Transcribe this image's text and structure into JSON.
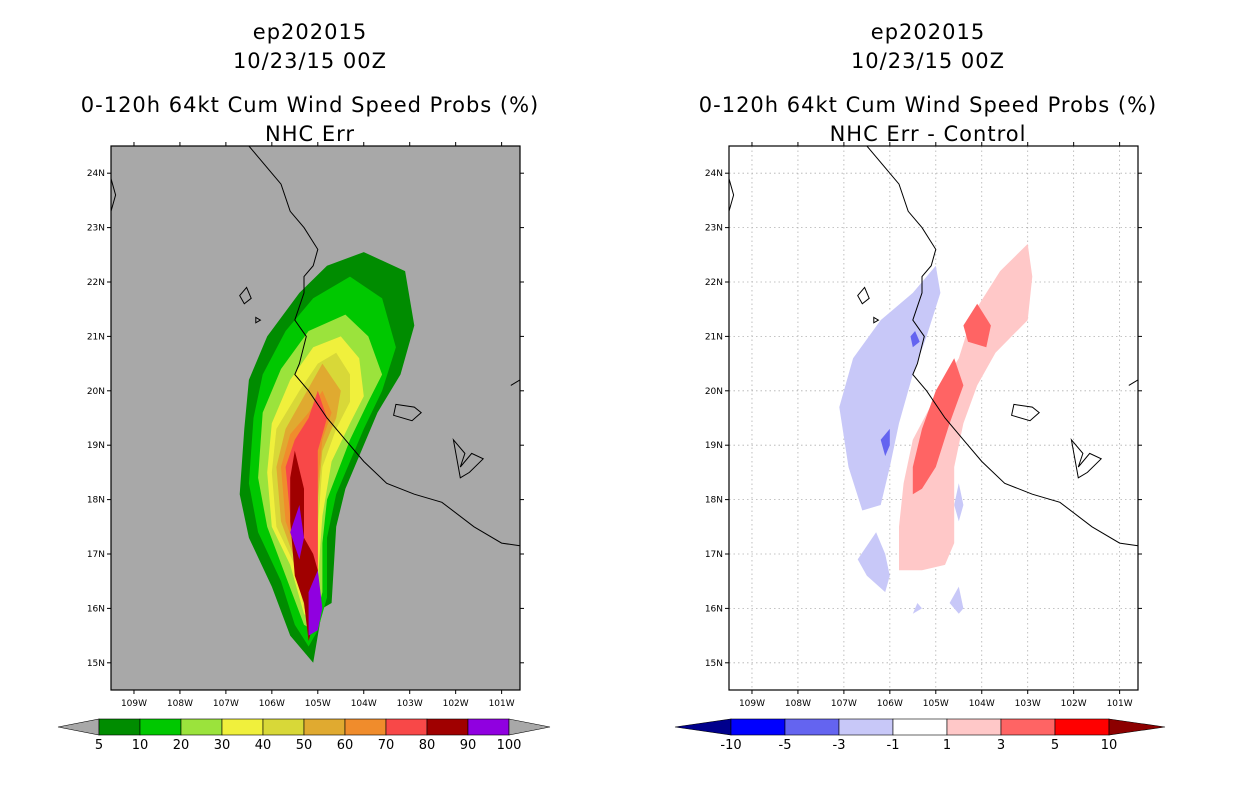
{
  "panels": [
    {
      "id": "left",
      "title_lines": [
        "ep202015",
        "10/23/15 00Z",
        "0-120h 64kt Cum Wind Speed Probs (%)",
        "NHC Err"
      ]
    },
    {
      "id": "right",
      "title_lines": [
        "ep202015",
        "10/23/15 00Z",
        "0-120h 64kt Cum Wind Speed Probs (%)",
        "NHC Err - Control"
      ]
    }
  ],
  "axes": {
    "x_ticks": [
      "109W",
      "108W",
      "107W",
      "106W",
      "105W",
      "104W",
      "103W",
      "102W",
      "101W"
    ],
    "y_ticks": [
      "24N",
      "23N",
      "22N",
      "21N",
      "20N",
      "19N",
      "18N",
      "17N",
      "16N",
      "15N"
    ]
  },
  "colorbars": {
    "left": {
      "labels": [
        "5",
        "10",
        "20",
        "30",
        "40",
        "50",
        "60",
        "70",
        "80",
        "90",
        "100"
      ],
      "colors": [
        "#008c00",
        "#00c800",
        "#9be33c",
        "#f0f03c",
        "#d8d838",
        "#e0aa30",
        "#f08c2c",
        "#f84848",
        "#a00000",
        "#9000e0"
      ]
    },
    "right": {
      "labels": [
        "-10",
        "-5",
        "-3",
        "-1",
        "1",
        "3",
        "5",
        "10"
      ],
      "colors": [
        "#0000ff",
        "#6464f0",
        "#c8c8f8",
        "#ffffff",
        "#ffc8c8",
        "#ff6464",
        "#ff0000"
      ]
    }
  },
  "chart_data": [
    {
      "type": "contour-map",
      "title": "0-120h 64kt Cum Wind Speed Probs (%)",
      "subtitle": "NHC Err",
      "storm": "ep202015",
      "valid": "10/23/15 00Z",
      "xlim": [
        -109.5,
        -100.6
      ],
      "ylim": [
        14.5,
        24.5
      ],
      "levels": [
        5,
        10,
        20,
        30,
        40,
        50,
        60,
        70,
        80,
        90,
        100
      ],
      "background": "#a8a8a8",
      "filled_regions": [
        {
          "level": 5,
          "color": "#008c00",
          "points": [
            [
              -104.0,
              22.55
            ],
            [
              -103.1,
              22.2
            ],
            [
              -102.9,
              21.2
            ],
            [
              -103.2,
              20.3
            ],
            [
              -103.7,
              19.6
            ],
            [
              -104.4,
              18.2
            ],
            [
              -104.6,
              17.5
            ],
            [
              -104.7,
              16.1
            ],
            [
              -104.9,
              16.0
            ],
            [
              -105.1,
              15.0
            ],
            [
              -105.6,
              15.5
            ],
            [
              -106.0,
              16.4
            ],
            [
              -106.5,
              17.3
            ],
            [
              -106.7,
              18.1
            ],
            [
              -106.6,
              19.3
            ],
            [
              -106.5,
              20.2
            ],
            [
              -106.1,
              21.0
            ],
            [
              -105.4,
              21.8
            ],
            [
              -104.8,
              22.3
            ]
          ]
        },
        {
          "level": 10,
          "color": "#00c800",
          "points": [
            [
              -104.3,
              22.1
            ],
            [
              -103.6,
              21.7
            ],
            [
              -103.3,
              20.8
            ],
            [
              -103.6,
              20.0
            ],
            [
              -104.0,
              19.3
            ],
            [
              -104.6,
              18.1
            ],
            [
              -104.8,
              17.3
            ],
            [
              -104.8,
              16.2
            ],
            [
              -105.0,
              15.6
            ],
            [
              -105.2,
              15.3
            ],
            [
              -105.5,
              15.7
            ],
            [
              -105.8,
              16.5
            ],
            [
              -106.3,
              17.4
            ],
            [
              -106.5,
              18.3
            ],
            [
              -106.4,
              19.5
            ],
            [
              -106.2,
              20.3
            ],
            [
              -105.7,
              21.1
            ],
            [
              -105.1,
              21.7
            ]
          ]
        },
        {
          "level": 20,
          "color": "#9be33c",
          "points": [
            [
              -104.4,
              21.4
            ],
            [
              -103.9,
              21.0
            ],
            [
              -103.6,
              20.3
            ],
            [
              -103.9,
              19.8
            ],
            [
              -104.3,
              19.1
            ],
            [
              -104.8,
              18.0
            ],
            [
              -104.9,
              17.2
            ],
            [
              -104.9,
              16.3
            ],
            [
              -105.1,
              15.6
            ],
            [
              -105.3,
              15.7
            ],
            [
              -105.7,
              16.6
            ],
            [
              -106.1,
              17.5
            ],
            [
              -106.3,
              18.4
            ],
            [
              -106.2,
              19.6
            ],
            [
              -105.8,
              20.4
            ],
            [
              -105.2,
              21.1
            ]
          ]
        },
        {
          "level": 30,
          "color": "#f0f03c",
          "points": [
            [
              -104.5,
              21.0
            ],
            [
              -104.1,
              20.6
            ],
            [
              -104.0,
              19.9
            ],
            [
              -104.3,
              19.4
            ],
            [
              -104.7,
              18.7
            ],
            [
              -104.9,
              17.7
            ],
            [
              -105.0,
              16.5
            ],
            [
              -105.1,
              15.7
            ],
            [
              -105.3,
              15.9
            ],
            [
              -105.6,
              16.8
            ],
            [
              -106.0,
              17.5
            ],
            [
              -106.1,
              18.5
            ],
            [
              -106.0,
              19.4
            ],
            [
              -105.6,
              20.2
            ],
            [
              -105.1,
              20.8
            ]
          ]
        },
        {
          "level": 40,
          "color": "#d8d838",
          "points": [
            [
              -104.6,
              20.7
            ],
            [
              -104.3,
              20.3
            ],
            [
              -104.3,
              19.8
            ],
            [
              -104.6,
              19.3
            ],
            [
              -104.9,
              18.6
            ],
            [
              -105.0,
              17.5
            ],
            [
              -105.0,
              16.6
            ],
            [
              -105.1,
              15.8
            ],
            [
              -105.3,
              16.0
            ],
            [
              -105.5,
              16.8
            ],
            [
              -105.9,
              17.5
            ],
            [
              -106.0,
              18.5
            ],
            [
              -105.9,
              19.3
            ],
            [
              -105.4,
              20.0
            ],
            [
              -105.0,
              20.5
            ]
          ]
        },
        {
          "level": 50,
          "color": "#e0aa30",
          "points": [
            [
              -104.9,
              20.5
            ],
            [
              -104.5,
              20.0
            ],
            [
              -104.6,
              19.5
            ],
            [
              -104.9,
              18.9
            ],
            [
              -105.0,
              18.0
            ],
            [
              -105.0,
              16.6
            ],
            [
              -105.1,
              15.9
            ],
            [
              -105.3,
              16.1
            ],
            [
              -105.5,
              16.9
            ],
            [
              -105.8,
              17.6
            ],
            [
              -105.9,
              18.6
            ],
            [
              -105.7,
              19.3
            ],
            [
              -105.3,
              19.9
            ]
          ]
        },
        {
          "level": 60,
          "color": "#f08c2c",
          "points": [
            [
              -104.9,
              20.0
            ],
            [
              -104.7,
              19.6
            ],
            [
              -104.9,
              19.1
            ],
            [
              -105.0,
              18.3
            ],
            [
              -105.0,
              16.7
            ],
            [
              -105.1,
              16.0
            ],
            [
              -105.3,
              16.2
            ],
            [
              -105.4,
              16.9
            ],
            [
              -105.7,
              17.6
            ],
            [
              -105.8,
              18.6
            ],
            [
              -105.6,
              19.2
            ],
            [
              -105.2,
              19.6
            ]
          ]
        },
        {
          "level": 70,
          "color": "#f84848",
          "points": [
            [
              -105.0,
              20.0
            ],
            [
              -104.8,
              19.5
            ],
            [
              -105.0,
              18.9
            ],
            [
              -105.0,
              17.5
            ],
            [
              -105.0,
              16.7
            ],
            [
              -105.1,
              16.1
            ],
            [
              -105.3,
              16.3
            ],
            [
              -105.4,
              17.0
            ],
            [
              -105.6,
              17.7
            ],
            [
              -105.7,
              18.6
            ],
            [
              -105.5,
              19.1
            ],
            [
              -105.2,
              19.5
            ]
          ]
        },
        {
          "level": 80,
          "color": "#a00000",
          "points": [
            [
              -105.5,
              18.9
            ],
            [
              -105.3,
              18.2
            ],
            [
              -105.3,
              17.3
            ],
            [
              -105.1,
              17.0
            ],
            [
              -105.0,
              16.7
            ],
            [
              -105.0,
              16.0
            ],
            [
              -105.2,
              15.4
            ],
            [
              -105.3,
              16.1
            ],
            [
              -105.5,
              16.6
            ],
            [
              -105.6,
              17.6
            ],
            [
              -105.6,
              18.4
            ]
          ]
        },
        {
          "level": 90,
          "color": "#9000e0",
          "points": [
            [
              -105.4,
              17.9
            ],
            [
              -105.3,
              17.3
            ],
            [
              -105.4,
              16.9
            ],
            [
              -105.6,
              17.4
            ]
          ]
        },
        {
          "level": 90,
          "color": "#9000e0",
          "points": [
            [
              -105.0,
              16.7
            ],
            [
              -104.9,
              16.0
            ],
            [
              -105.0,
              15.6
            ],
            [
              -105.2,
              15.5
            ],
            [
              -105.2,
              16.3
            ]
          ]
        }
      ]
    },
    {
      "type": "contour-map",
      "title": "0-120h 64kt Cum Wind Speed Probs (%)",
      "subtitle": "NHC Err - Control",
      "storm": "ep202015",
      "valid": "10/23/15 00Z",
      "xlim": [
        -109.5,
        -100.6
      ],
      "ylim": [
        14.5,
        24.5
      ],
      "levels": [
        -10,
        -5,
        -3,
        -1,
        1,
        3,
        5,
        10
      ],
      "background": "#ffffff",
      "filled_regions": [
        {
          "level": -1,
          "color": "#c8c8f8",
          "points": [
            [
              -105.0,
              22.3
            ],
            [
              -104.9,
              21.8
            ],
            [
              -105.2,
              21.0
            ],
            [
              -105.5,
              20.3
            ],
            [
              -105.8,
              19.4
            ],
            [
              -106.0,
              18.6
            ],
            [
              -106.2,
              17.9
            ],
            [
              -106.6,
              17.8
            ],
            [
              -106.9,
              18.6
            ],
            [
              -107.1,
              19.7
            ],
            [
              -106.8,
              20.6
            ],
            [
              -106.2,
              21.3
            ],
            [
              -105.5,
              21.8
            ]
          ]
        },
        {
          "level": -1,
          "color": "#c8c8f8",
          "points": [
            [
              -106.3,
              17.4
            ],
            [
              -106.1,
              17.0
            ],
            [
              -106.0,
              16.6
            ],
            [
              -106.1,
              16.3
            ],
            [
              -106.5,
              16.6
            ],
            [
              -106.7,
              16.9
            ]
          ]
        },
        {
          "level": -1,
          "color": "#c8c8f8",
          "points": [
            [
              -104.5,
              18.3
            ],
            [
              -104.4,
              17.9
            ],
            [
              -104.5,
              17.6
            ],
            [
              -104.6,
              17.9
            ]
          ]
        },
        {
          "level": -1,
          "color": "#c8c8f8",
          "points": [
            [
              -104.5,
              16.4
            ],
            [
              -104.4,
              16.0
            ],
            [
              -104.5,
              15.9
            ],
            [
              -104.7,
              16.1
            ]
          ]
        },
        {
          "level": -1,
          "color": "#c8c8f8",
          "points": [
            [
              -105.4,
              16.1
            ],
            [
              -105.3,
              16.0
            ],
            [
              -105.5,
              15.9
            ]
          ]
        },
        {
          "level": -3,
          "color": "#6464f0",
          "points": [
            [
              -106.0,
              19.3
            ],
            [
              -106.0,
              19.0
            ],
            [
              -106.1,
              18.8
            ],
            [
              -106.2,
              19.1
            ]
          ]
        },
        {
          "level": -3,
          "color": "#6464f0",
          "points": [
            [
              -105.45,
              21.1
            ],
            [
              -105.35,
              20.9
            ],
            [
              -105.5,
              20.8
            ],
            [
              -105.55,
              21.0
            ]
          ]
        },
        {
          "level": 1,
          "color": "#ffc8c8",
          "points": [
            [
              -103.0,
              22.7
            ],
            [
              -102.9,
              22.1
            ],
            [
              -103.0,
              21.3
            ],
            [
              -103.7,
              20.7
            ],
            [
              -104.1,
              20.1
            ],
            [
              -104.4,
              19.4
            ],
            [
              -104.6,
              18.6
            ],
            [
              -104.6,
              17.9
            ],
            [
              -104.6,
              17.2
            ],
            [
              -104.8,
              16.8
            ],
            [
              -105.3,
              16.7
            ],
            [
              -105.8,
              16.7
            ],
            [
              -105.8,
              17.5
            ],
            [
              -105.7,
              18.3
            ],
            [
              -105.5,
              19.1
            ],
            [
              -105.0,
              19.9
            ],
            [
              -104.5,
              20.6
            ],
            [
              -104.2,
              21.4
            ],
            [
              -103.6,
              22.2
            ]
          ]
        },
        {
          "level": 3,
          "color": "#ff6464",
          "points": [
            [
              -104.1,
              21.6
            ],
            [
              -103.8,
              21.2
            ],
            [
              -103.9,
              20.8
            ],
            [
              -104.3,
              20.9
            ],
            [
              -104.4,
              21.2
            ]
          ]
        },
        {
          "level": 3,
          "color": "#ff6464",
          "points": [
            [
              -104.6,
              20.6
            ],
            [
              -104.4,
              20.1
            ],
            [
              -104.7,
              19.4
            ],
            [
              -105.0,
              18.6
            ],
            [
              -105.3,
              18.2
            ],
            [
              -105.5,
              18.1
            ],
            [
              -105.5,
              18.6
            ],
            [
              -105.3,
              19.3
            ],
            [
              -105.0,
              20.0
            ]
          ]
        }
      ]
    }
  ]
}
